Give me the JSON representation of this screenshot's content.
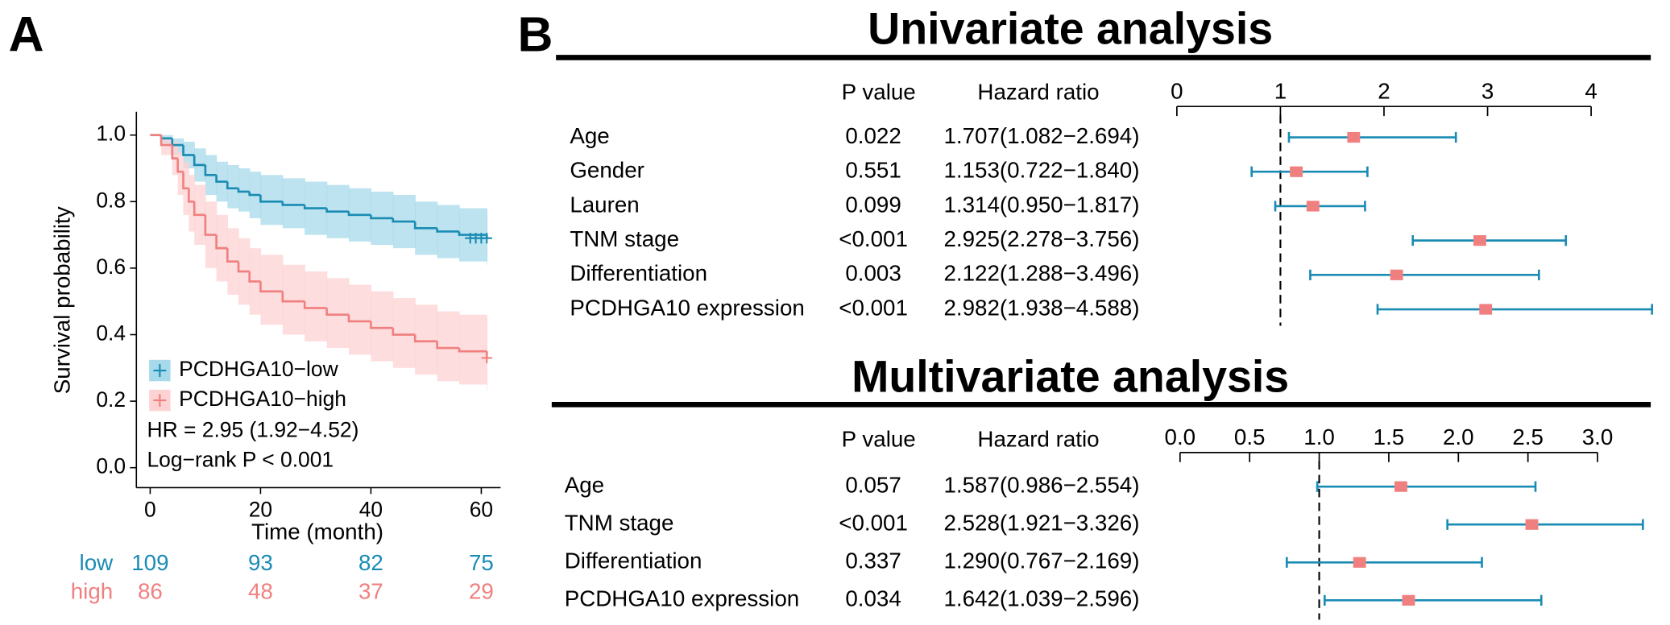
{
  "panel_labels": [
    "A",
    "B"
  ],
  "chart_data": [
    {
      "type": "km",
      "xlabel": "Time (month)",
      "ylabel": "Survival probability",
      "xlim": [
        -2.5,
        63.5
      ],
      "xticks": [
        0,
        20,
        40,
        60
      ],
      "ylim": [
        -0.06,
        1.07
      ],
      "yticks": [
        {
          "value": 0,
          "label": "0.0"
        },
        0.2,
        0.4,
        0.6,
        0.8,
        {
          "value": 1,
          "label": "1.0"
        }
      ],
      "annotations": [
        "HR = 2.95 (1.92−4.52)",
        "Log−rank P < 0.001"
      ],
      "series": [
        {
          "name": "PCDHGA10−low",
          "color": "#1a8cb4",
          "band_color": "#a6d9ea",
          "x": [
            0,
            2,
            4,
            6,
            8,
            10,
            12,
            14,
            16,
            18,
            20,
            24,
            28,
            32,
            36,
            40,
            44,
            48,
            52,
            56,
            61
          ],
          "values": [
            1.0,
            0.99,
            0.97,
            0.94,
            0.91,
            0.88,
            0.86,
            0.84,
            0.83,
            0.82,
            0.8,
            0.79,
            0.78,
            0.77,
            0.76,
            0.75,
            0.74,
            0.72,
            0.71,
            0.7,
            0.69
          ],
          "upper": [
            1.0,
            1.0,
            0.99,
            0.98,
            0.96,
            0.94,
            0.92,
            0.91,
            0.9,
            0.89,
            0.88,
            0.87,
            0.86,
            0.85,
            0.84,
            0.83,
            0.82,
            0.8,
            0.79,
            0.78,
            0.77
          ],
          "lower": [
            1.0,
            0.97,
            0.94,
            0.9,
            0.86,
            0.82,
            0.8,
            0.78,
            0.77,
            0.75,
            0.73,
            0.72,
            0.7,
            0.69,
            0.68,
            0.67,
            0.66,
            0.64,
            0.63,
            0.62,
            0.61
          ],
          "censored_x": [
            58,
            59,
            60,
            61
          ],
          "censored_y": [
            0.69,
            0.69,
            0.69,
            0.69
          ]
        },
        {
          "name": "PCDHGA10−high",
          "color": "#f08080",
          "band_color": "#fcd2d2",
          "x": [
            0,
            2,
            4,
            5,
            6,
            7,
            8,
            10,
            12,
            14,
            16,
            18,
            20,
            24,
            28,
            32,
            36,
            40,
            44,
            48,
            52,
            56,
            61
          ],
          "values": [
            1.0,
            0.97,
            0.93,
            0.89,
            0.84,
            0.8,
            0.76,
            0.7,
            0.66,
            0.62,
            0.59,
            0.56,
            0.53,
            0.5,
            0.48,
            0.46,
            0.44,
            0.42,
            0.4,
            0.38,
            0.36,
            0.35,
            0.33
          ],
          "upper": [
            1.0,
            0.99,
            0.98,
            0.95,
            0.92,
            0.88,
            0.85,
            0.8,
            0.76,
            0.72,
            0.69,
            0.66,
            0.64,
            0.61,
            0.59,
            0.57,
            0.55,
            0.53,
            0.51,
            0.49,
            0.47,
            0.46,
            0.45
          ],
          "lower": [
            1.0,
            0.94,
            0.88,
            0.82,
            0.76,
            0.71,
            0.67,
            0.6,
            0.56,
            0.52,
            0.49,
            0.46,
            0.43,
            0.4,
            0.38,
            0.36,
            0.34,
            0.32,
            0.3,
            0.28,
            0.26,
            0.25,
            0.23
          ],
          "censored_x": [
            61
          ],
          "censored_y": [
            0.33
          ]
        }
      ],
      "risk_table": {
        "rows": [
          {
            "name": "low",
            "color": "#1a8cb4",
            "values": [
              109,
              93,
              82,
              75
            ]
          },
          {
            "name": "high",
            "color": "#f08080",
            "values": [
              86,
              48,
              37,
              29
            ]
          }
        ]
      }
    },
    {
      "type": "forest",
      "title": "Univariate analysis",
      "column_headers": [
        "P value",
        "Hazard ratio"
      ],
      "categories": [
        "Age",
        "Gender",
        "Lauren",
        "TNM stage",
        "Differentiation",
        "PCDHGA10 expression"
      ],
      "p_values": [
        "0.022",
        "0.551",
        "0.099",
        "<0.001",
        "0.003",
        "<0.001"
      ],
      "values": [
        1.707,
        1.153,
        1.314,
        2.925,
        2.122,
        2.982
      ],
      "lower": [
        1.082,
        0.722,
        0.95,
        2.278,
        1.288,
        1.938
      ],
      "upper": [
        2.694,
        1.84,
        1.817,
        3.756,
        3.496,
        4.588
      ],
      "value_labels": [
        "1.707(1.082−2.694)",
        "1.153(0.722−1.840)",
        "1.314(0.950−1.817)",
        "2.925(2.278−3.756)",
        "2.122(1.288−3.496)",
        "2.982(1.938−4.588)"
      ],
      "xlim": [
        0,
        4
      ],
      "xticks": [
        0,
        1,
        2,
        3,
        4
      ],
      "ref_line": 1,
      "line_color": "#1a8cb4",
      "point_color": "#f08080"
    },
    {
      "type": "forest",
      "title": "Multivariate analysis",
      "column_headers": [
        "P value",
        "Hazard ratio"
      ],
      "categories": [
        "Age",
        "TNM stage",
        "Differentiation",
        "PCDHGA10 expression"
      ],
      "p_values": [
        "0.057",
        "<0.001",
        "0.337",
        "0.034"
      ],
      "values": [
        1.587,
        2.528,
        1.29,
        1.642
      ],
      "lower": [
        0.986,
        1.921,
        0.767,
        1.039
      ],
      "upper": [
        2.554,
        3.326,
        2.169,
        2.596
      ],
      "value_labels": [
        "1.587(0.986−2.554)",
        "2.528(1.921−3.326)",
        "1.290(0.767−2.169)",
        "1.642(1.039−2.596)"
      ],
      "xlim": [
        0,
        3
      ],
      "xticks": [
        {
          "value": 0,
          "label": "0.0"
        },
        0.5,
        {
          "value": 1,
          "label": "1.0"
        },
        1.5,
        {
          "value": 2,
          "label": "2.0"
        },
        2.5,
        {
          "value": 3,
          "label": "3.0"
        }
      ],
      "ref_line": 1,
      "line_color": "#1a8cb4",
      "point_color": "#f08080"
    }
  ]
}
